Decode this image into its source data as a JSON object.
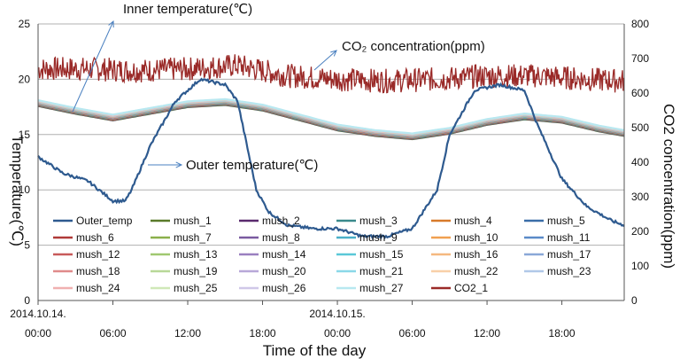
{
  "chart_data": {
    "type": "line",
    "xlabel": "Time of the day",
    "ylabel_left": "Temperature(℃)",
    "ylabel_right": "CO2 concentration(ppm)",
    "ylim_left": [
      0,
      25
    ],
    "ylim_right": [
      0,
      800
    ],
    "yticks_left": [
      0,
      5,
      10,
      15,
      20,
      25
    ],
    "yticks_right": [
      0,
      100,
      200,
      300,
      400,
      500,
      600,
      700,
      800
    ],
    "grid": "horizontal",
    "x_range_hours": [
      0,
      47
    ],
    "x_ticks": [
      {
        "hour": 0,
        "date": "2014.10.14.",
        "time": "00:00"
      },
      {
        "hour": 6,
        "date": "",
        "time": "06:00"
      },
      {
        "hour": 12,
        "date": "",
        "time": "12:00"
      },
      {
        "hour": 18,
        "date": "",
        "time": "18:00"
      },
      {
        "hour": 24,
        "date": "2014.10.15.",
        "time": "00:00"
      },
      {
        "hour": 30,
        "date": "",
        "time": "06:00"
      },
      {
        "hour": 36,
        "date": "",
        "time": "12:00"
      },
      {
        "hour": 42,
        "date": "",
        "time": "18:00"
      }
    ],
    "annotations": [
      {
        "text": "Inner temperature(℃)",
        "target": "mush"
      },
      {
        "text": "CO₂ concentration(ppm)",
        "target": "co2"
      },
      {
        "text": "Outer temperature(℃)",
        "target": "outer"
      }
    ],
    "series": [
      {
        "name": "Outer_temp",
        "color": "#2e5a8f",
        "axis": "left",
        "hours": [
          0,
          2,
          4,
          6,
          7,
          7.5,
          9,
          11,
          13,
          15,
          16,
          17.5,
          18.5,
          20,
          22,
          24,
          26,
          28,
          30,
          32,
          33,
          35,
          37,
          39,
          40,
          42,
          44,
          46,
          47
        ],
        "values": [
          13,
          11.5,
          10.8,
          9,
          9,
          10,
          14,
          18,
          20,
          19.5,
          18,
          10,
          8,
          6.8,
          6.5,
          6.5,
          5.8,
          5.8,
          6.5,
          10,
          15,
          19,
          19.5,
          19,
          16,
          11,
          8.5,
          7.2,
          6.8
        ]
      },
      {
        "name": "mush_1",
        "color": "#5a7a2a",
        "axis": "left",
        "offset": -0.12
      },
      {
        "name": "mush_2",
        "color": "#5a2a6e",
        "axis": "left",
        "offset": -0.1
      },
      {
        "name": "mush_3",
        "color": "#3a8a8c",
        "axis": "left",
        "offset": -0.08
      },
      {
        "name": "mush_4",
        "color": "#d87a2a",
        "axis": "left",
        "offset": -0.06
      },
      {
        "name": "mush_5",
        "color": "#3a6ea8",
        "axis": "left",
        "offset": -0.04
      },
      {
        "name": "mush_6",
        "color": "#b03a38",
        "axis": "left",
        "offset": -0.02
      },
      {
        "name": "mush_7",
        "color": "#8ab04a",
        "axis": "left",
        "offset": 0.0
      },
      {
        "name": "mush_8",
        "color": "#7a5aa0",
        "axis": "left",
        "offset": 0.02
      },
      {
        "name": "mush_9",
        "color": "#4ab0c8",
        "axis": "left",
        "offset": 0.04
      },
      {
        "name": "mush_10",
        "color": "#f0a050",
        "axis": "left",
        "offset": 0.06
      },
      {
        "name": "mush_11",
        "color": "#5a8ac8",
        "axis": "left",
        "offset": 0.08
      },
      {
        "name": "mush_12",
        "color": "#c85a5a",
        "axis": "left",
        "offset": 0.1
      },
      {
        "name": "mush_13",
        "color": "#a0c870",
        "axis": "left",
        "offset": 0.12
      },
      {
        "name": "mush_14",
        "color": "#9a80c0",
        "axis": "left",
        "offset": 0.14
      },
      {
        "name": "mush_15",
        "color": "#5ac8d8",
        "axis": "left",
        "offset": 0.16
      },
      {
        "name": "mush_16",
        "color": "#f5b880",
        "axis": "left",
        "offset": 0.18
      },
      {
        "name": "mush_17",
        "color": "#8aa8d8",
        "axis": "left",
        "offset": 0.2
      },
      {
        "name": "mush_18",
        "color": "#e08a8a",
        "axis": "left",
        "offset": 0.22
      },
      {
        "name": "mush_19",
        "color": "#b8d898",
        "axis": "left",
        "offset": 0.24
      },
      {
        "name": "mush_20",
        "color": "#b8a8d8",
        "axis": "left",
        "offset": 0.26
      },
      {
        "name": "mush_21",
        "color": "#8ad8e8",
        "axis": "left",
        "offset": 0.28
      },
      {
        "name": "mush_22",
        "color": "#f8d0a8",
        "axis": "left",
        "offset": 0.3
      },
      {
        "name": "mush_23",
        "color": "#b0c8e8",
        "axis": "left",
        "offset": 0.32
      },
      {
        "name": "mush_24",
        "color": "#f0b0b0",
        "axis": "left",
        "offset": 0.34
      },
      {
        "name": "mush_25",
        "color": "#d0e8b8",
        "axis": "left",
        "offset": 0.36
      },
      {
        "name": "mush_26",
        "color": "#d0c8e8",
        "axis": "left",
        "offset": 0.38
      },
      {
        "name": "mush_27",
        "color": "#b8e8f0",
        "axis": "left",
        "offset": 0.4
      },
      {
        "name": "CO2_1",
        "color": "#9a2a28",
        "axis": "right",
        "hours": [
          0,
          4,
          8,
          12,
          16,
          20,
          24,
          28,
          32,
          36,
          40,
          44,
          47
        ],
        "values": [
          670,
          670,
          665,
          670,
          680,
          650,
          640,
          635,
          640,
          650,
          650,
          640,
          635
        ],
        "noise": 35
      }
    ],
    "mush_base": {
      "hours": [
        0,
        3,
        6,
        9,
        12,
        15,
        18,
        21,
        24,
        27,
        30,
        33,
        36,
        39,
        42,
        45,
        47
      ],
      "values": [
        17.7,
        17,
        16.4,
        17,
        17.6,
        17.8,
        17.3,
        16.4,
        15.5,
        15,
        14.7,
        15.2,
        16,
        16.5,
        16.2,
        15.4,
        15
      ]
    }
  }
}
